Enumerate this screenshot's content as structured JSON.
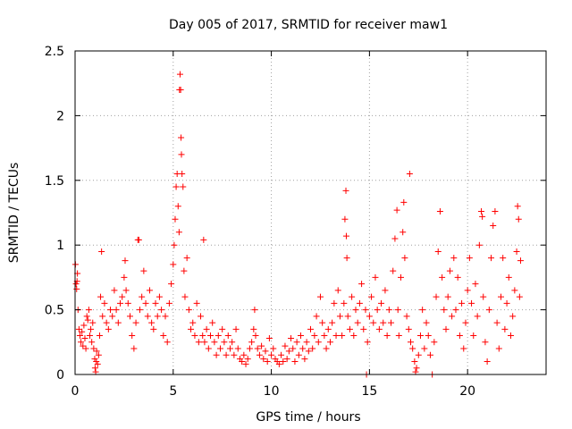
{
  "chart_data": {
    "type": "scatter",
    "title": "Day 005 of 2017, SRMTID for receiver maw1",
    "xlabel": "GPS time / hours",
    "ylabel": "SRMTID / TECUs",
    "xlim": [
      0,
      24
    ],
    "ylim": [
      0,
      2.5
    ],
    "x_ticks": [
      "0",
      "5",
      "10",
      "15",
      "20"
    ],
    "x_tick_values": [
      0,
      5,
      10,
      15,
      20
    ],
    "y_ticks": [
      "0",
      "0.5",
      "1",
      "1.5",
      "2",
      "2.5"
    ],
    "y_tick_values": [
      0,
      0.5,
      1,
      1.5,
      2,
      2.5
    ],
    "grid": true,
    "marker": "plus",
    "color": "#ff0000",
    "series": [
      {
        "name": "maw1",
        "points": [
          [
            0.02,
            0.85
          ],
          [
            0.05,
            0.7
          ],
          [
            0.08,
            0.66
          ],
          [
            0.1,
            0.72
          ],
          [
            0.12,
            0.78
          ],
          [
            0.15,
            0.5
          ],
          [
            0.2,
            0.35
          ],
          [
            0.25,
            0.3
          ],
          [
            0.3,
            0.25
          ],
          [
            0.35,
            0.33
          ],
          [
            0.4,
            0.22
          ],
          [
            0.45,
            0.38
          ],
          [
            0.5,
            0.28
          ],
          [
            0.55,
            0.2
          ],
          [
            0.6,
            0.45
          ],
          [
            0.65,
            0.42
          ],
          [
            0.7,
            0.5
          ],
          [
            0.75,
            0.3
          ],
          [
            0.8,
            0.35
          ],
          [
            0.85,
            0.25
          ],
          [
            0.9,
            0.4
          ],
          [
            0.95,
            0.2
          ],
          [
            1.0,
            0.12
          ],
          [
            1.02,
            0.05
          ],
          [
            1.05,
            0.02
          ],
          [
            1.08,
            0.1
          ],
          [
            1.1,
            0.18
          ],
          [
            1.15,
            0.08
          ],
          [
            1.2,
            0.15
          ],
          [
            1.25,
            0.3
          ],
          [
            1.3,
            0.6
          ],
          [
            1.35,
            0.95
          ],
          [
            1.4,
            0.45
          ],
          [
            1.5,
            0.55
          ],
          [
            1.6,
            0.4
          ],
          [
            1.7,
            0.35
          ],
          [
            1.8,
            0.5
          ],
          [
            1.9,
            0.45
          ],
          [
            2.0,
            0.65
          ],
          [
            2.1,
            0.5
          ],
          [
            2.2,
            0.4
          ],
          [
            2.3,
            0.55
          ],
          [
            2.4,
            0.6
          ],
          [
            2.5,
            0.75
          ],
          [
            2.55,
            0.88
          ],
          [
            2.6,
            0.65
          ],
          [
            2.7,
            0.55
          ],
          [
            2.8,
            0.45
          ],
          [
            2.9,
            0.3
          ],
          [
            3.0,
            0.2
          ],
          [
            3.1,
            0.4
          ],
          [
            3.2,
            1.04
          ],
          [
            3.25,
            1.04
          ],
          [
            3.3,
            0.5
          ],
          [
            3.4,
            0.6
          ],
          [
            3.5,
            0.8
          ],
          [
            3.6,
            0.55
          ],
          [
            3.7,
            0.45
          ],
          [
            3.8,
            0.65
          ],
          [
            3.9,
            0.4
          ],
          [
            4.0,
            0.35
          ],
          [
            4.1,
            0.55
          ],
          [
            4.2,
            0.45
          ],
          [
            4.3,
            0.6
          ],
          [
            4.4,
            0.5
          ],
          [
            4.5,
            0.3
          ],
          [
            4.6,
            0.45
          ],
          [
            4.7,
            0.25
          ],
          [
            4.8,
            0.55
          ],
          [
            4.9,
            0.7
          ],
          [
            5.0,
            0.85
          ],
          [
            5.05,
            1.0
          ],
          [
            5.1,
            1.2
          ],
          [
            5.15,
            1.45
          ],
          [
            5.2,
            1.55
          ],
          [
            5.25,
            1.3
          ],
          [
            5.3,
            1.1
          ],
          [
            5.32,
            2.2
          ],
          [
            5.35,
            2.32
          ],
          [
            5.38,
            2.2
          ],
          [
            5.4,
            1.83
          ],
          [
            5.42,
            1.7
          ],
          [
            5.45,
            1.55
          ],
          [
            5.5,
            1.45
          ],
          [
            5.55,
            0.8
          ],
          [
            5.6,
            0.6
          ],
          [
            5.7,
            0.9
          ],
          [
            5.8,
            0.5
          ],
          [
            5.9,
            0.35
          ],
          [
            6.0,
            0.4
          ],
          [
            6.1,
            0.3
          ],
          [
            6.2,
            0.55
          ],
          [
            6.3,
            0.25
          ],
          [
            6.4,
            0.45
          ],
          [
            6.5,
            0.3
          ],
          [
            6.55,
            1.04
          ],
          [
            6.6,
            0.25
          ],
          [
            6.7,
            0.35
          ],
          [
            6.8,
            0.2
          ],
          [
            6.9,
            0.3
          ],
          [
            7.0,
            0.4
          ],
          [
            7.1,
            0.25
          ],
          [
            7.2,
            0.15
          ],
          [
            7.3,
            0.3
          ],
          [
            7.4,
            0.2
          ],
          [
            7.5,
            0.35
          ],
          [
            7.6,
            0.25
          ],
          [
            7.7,
            0.15
          ],
          [
            7.8,
            0.3
          ],
          [
            7.9,
            0.2
          ],
          [
            8.0,
            0.25
          ],
          [
            8.1,
            0.15
          ],
          [
            8.2,
            0.35
          ],
          [
            8.3,
            0.2
          ],
          [
            8.4,
            0.12
          ],
          [
            8.5,
            0.1
          ],
          [
            8.6,
            0.15
          ],
          [
            8.7,
            0.08
          ],
          [
            8.8,
            0.12
          ],
          [
            8.9,
            0.2
          ],
          [
            9.0,
            0.25
          ],
          [
            9.1,
            0.35
          ],
          [
            9.15,
            0.5
          ],
          [
            9.2,
            0.3
          ],
          [
            9.3,
            0.2
          ],
          [
            9.4,
            0.15
          ],
          [
            9.5,
            0.22
          ],
          [
            9.6,
            0.12
          ],
          [
            9.7,
            0.18
          ],
          [
            9.8,
            0.1
          ],
          [
            9.9,
            0.28
          ],
          [
            10.0,
            0.15
          ],
          [
            10.1,
            0.2
          ],
          [
            10.2,
            0.12
          ],
          [
            10.3,
            0.1
          ],
          [
            10.4,
            0.08
          ],
          [
            10.5,
            0.15
          ],
          [
            10.6,
            0.1
          ],
          [
            10.7,
            0.22
          ],
          [
            10.8,
            0.12
          ],
          [
            10.9,
            0.18
          ],
          [
            11.0,
            0.28
          ],
          [
            11.1,
            0.2
          ],
          [
            11.2,
            0.1
          ],
          [
            11.3,
            0.25
          ],
          [
            11.4,
            0.15
          ],
          [
            11.5,
            0.3
          ],
          [
            11.6,
            0.2
          ],
          [
            11.7,
            0.12
          ],
          [
            11.8,
            0.25
          ],
          [
            11.9,
            0.18
          ],
          [
            12.0,
            0.35
          ],
          [
            12.1,
            0.2
          ],
          [
            12.2,
            0.3
          ],
          [
            12.3,
            0.45
          ],
          [
            12.4,
            0.25
          ],
          [
            12.5,
            0.6
          ],
          [
            12.6,
            0.4
          ],
          [
            12.7,
            0.3
          ],
          [
            12.8,
            0.2
          ],
          [
            12.9,
            0.35
          ],
          [
            13.0,
            0.25
          ],
          [
            13.1,
            0.4
          ],
          [
            13.2,
            0.55
          ],
          [
            13.3,
            0.3
          ],
          [
            13.4,
            0.65
          ],
          [
            13.5,
            0.45
          ],
          [
            13.6,
            0.3
          ],
          [
            13.7,
            0.55
          ],
          [
            13.75,
            1.2
          ],
          [
            13.8,
            1.42
          ],
          [
            13.82,
            1.07
          ],
          [
            13.85,
            0.9
          ],
          [
            13.9,
            0.45
          ],
          [
            14.0,
            0.35
          ],
          [
            14.1,
            0.6
          ],
          [
            14.2,
            0.3
          ],
          [
            14.3,
            0.5
          ],
          [
            14.4,
            0.4
          ],
          [
            14.5,
            0.55
          ],
          [
            14.6,
            0.7
          ],
          [
            14.7,
            0.35
          ],
          [
            14.8,
            0.5
          ],
          [
            14.85,
            0.0
          ],
          [
            14.9,
            0.25
          ],
          [
            15.0,
            0.45
          ],
          [
            15.1,
            0.6
          ],
          [
            15.2,
            0.4
          ],
          [
            15.3,
            0.75
          ],
          [
            15.4,
            0.5
          ],
          [
            15.5,
            0.35
          ],
          [
            15.6,
            0.55
          ],
          [
            15.7,
            0.4
          ],
          [
            15.8,
            0.65
          ],
          [
            15.9,
            0.3
          ],
          [
            16.0,
            0.5
          ],
          [
            16.1,
            0.4
          ],
          [
            16.2,
            0.8
          ],
          [
            16.3,
            1.05
          ],
          [
            16.4,
            1.27
          ],
          [
            16.45,
            0.5
          ],
          [
            16.5,
            0.3
          ],
          [
            16.6,
            0.75
          ],
          [
            16.7,
            1.1
          ],
          [
            16.75,
            1.33
          ],
          [
            16.8,
            0.9
          ],
          [
            16.9,
            0.45
          ],
          [
            17.0,
            0.35
          ],
          [
            17.05,
            1.55
          ],
          [
            17.1,
            0.25
          ],
          [
            17.2,
            0.2
          ],
          [
            17.3,
            0.1
          ],
          [
            17.35,
            0.02
          ],
          [
            17.4,
            0.05
          ],
          [
            17.5,
            0.15
          ],
          [
            17.6,
            0.3
          ],
          [
            17.7,
            0.5
          ],
          [
            17.8,
            0.2
          ],
          [
            17.9,
            0.4
          ],
          [
            18.0,
            0.3
          ],
          [
            18.1,
            0.15
          ],
          [
            18.2,
            0.0
          ],
          [
            18.3,
            0.25
          ],
          [
            18.4,
            0.6
          ],
          [
            18.5,
            0.95
          ],
          [
            18.6,
            1.26
          ],
          [
            18.7,
            0.75
          ],
          [
            18.8,
            0.5
          ],
          [
            18.9,
            0.35
          ],
          [
            19.0,
            0.6
          ],
          [
            19.1,
            0.8
          ],
          [
            19.2,
            0.45
          ],
          [
            19.3,
            0.9
          ],
          [
            19.4,
            0.5
          ],
          [
            19.5,
            0.75
          ],
          [
            19.6,
            0.3
          ],
          [
            19.7,
            0.55
          ],
          [
            19.8,
            0.2
          ],
          [
            19.9,
            0.4
          ],
          [
            20.0,
            0.65
          ],
          [
            20.1,
            0.9
          ],
          [
            20.2,
            0.55
          ],
          [
            20.3,
            0.3
          ],
          [
            20.4,
            0.7
          ],
          [
            20.5,
            0.45
          ],
          [
            20.6,
            1.0
          ],
          [
            20.7,
            1.26
          ],
          [
            20.75,
            1.22
          ],
          [
            20.8,
            0.6
          ],
          [
            20.9,
            0.25
          ],
          [
            21.0,
            0.1
          ],
          [
            21.1,
            0.5
          ],
          [
            21.2,
            0.9
          ],
          [
            21.3,
            1.15
          ],
          [
            21.4,
            1.26
          ],
          [
            21.5,
            0.4
          ],
          [
            21.6,
            0.2
          ],
          [
            21.7,
            0.6
          ],
          [
            21.8,
            0.9
          ],
          [
            21.9,
            0.35
          ],
          [
            22.0,
            0.55
          ],
          [
            22.1,
            0.75
          ],
          [
            22.2,
            0.3
          ],
          [
            22.3,
            0.45
          ],
          [
            22.4,
            0.65
          ],
          [
            22.5,
            0.95
          ],
          [
            22.55,
            1.3
          ],
          [
            22.6,
            1.2
          ],
          [
            22.65,
            0.6
          ],
          [
            22.7,
            0.88
          ]
        ]
      }
    ]
  }
}
